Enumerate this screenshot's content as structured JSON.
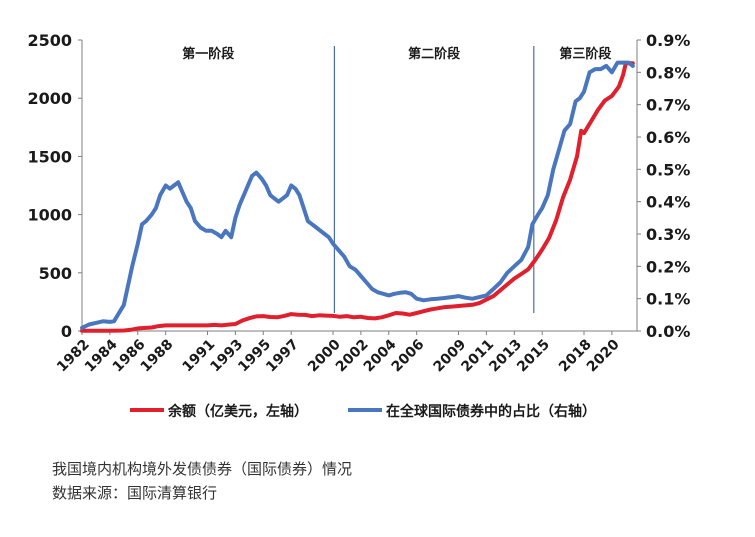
{
  "chart_data": {
    "type": "line",
    "title": "",
    "xlabel": "",
    "ylabel_left": "",
    "ylabel_right": "",
    "y_left_range": [
      0,
      2500
    ],
    "y_right_range": [
      0,
      0.9
    ],
    "x_range": [
      1982,
      2021.8
    ],
    "y_left_ticks": [
      "0",
      "500",
      "1000",
      "1500",
      "2000",
      "2500"
    ],
    "y_right_ticks": [
      "0.0%",
      "0.1%",
      "0.2%",
      "0.3%",
      "0.4%",
      "0.5%",
      "0.6%",
      "0.7%",
      "0.8%",
      "0.9%"
    ],
    "x_ticks": [
      "1982",
      "1984",
      "1986",
      "1988",
      "1991",
      "1993",
      "1995",
      "1997",
      "2000",
      "2002",
      "2004",
      "2006",
      "2009",
      "2011",
      "2013",
      "2015",
      "2018",
      "2020"
    ],
    "legend_position": "bottom",
    "grid": false,
    "phases": [
      {
        "label": "第一阶段",
        "x_start": 1982,
        "x_end": 2000.1
      },
      {
        "label": "第二阶段",
        "x_start": 2000.1,
        "x_end": 2014.4
      },
      {
        "label": "第三阶段",
        "x_start": 2014.4,
        "x_end": 2021.8
      }
    ],
    "series": [
      {
        "name": "余额（亿美元，左轴）",
        "axis": "left",
        "color": "#e0202c",
        "points": [
          [
            1982.0,
            2
          ],
          [
            1984.0,
            2
          ],
          [
            1985.0,
            4
          ],
          [
            1985.5,
            10
          ],
          [
            1986.0,
            22
          ],
          [
            1987.0,
            30
          ],
          [
            1987.5,
            42
          ],
          [
            1988.0,
            48
          ],
          [
            1989.0,
            48
          ],
          [
            1990.0,
            48
          ],
          [
            1991.0,
            48
          ],
          [
            1991.5,
            52
          ],
          [
            1992.0,
            48
          ],
          [
            1992.5,
            55
          ],
          [
            1993.0,
            60
          ],
          [
            1993.5,
            90
          ],
          [
            1994.0,
            110
          ],
          [
            1994.5,
            125
          ],
          [
            1995.0,
            128
          ],
          [
            1995.5,
            120
          ],
          [
            1996.0,
            118
          ],
          [
            1996.5,
            130
          ],
          [
            1997.0,
            145
          ],
          [
            1997.5,
            140
          ],
          [
            1998.0,
            138
          ],
          [
            1998.5,
            128
          ],
          [
            1999.0,
            135
          ],
          [
            1999.5,
            132
          ],
          [
            2000.0,
            130
          ],
          [
            2000.5,
            122
          ],
          [
            2001.0,
            128
          ],
          [
            2001.5,
            118
          ],
          [
            2002.0,
            122
          ],
          [
            2002.5,
            112
          ],
          [
            2003.0,
            108
          ],
          [
            2003.5,
            118
          ],
          [
            2004.0,
            135
          ],
          [
            2004.5,
            155
          ],
          [
            2005.0,
            150
          ],
          [
            2005.5,
            140
          ],
          [
            2006.0,
            155
          ],
          [
            2006.5,
            170
          ],
          [
            2007.0,
            185
          ],
          [
            2007.5,
            195
          ],
          [
            2008.0,
            205
          ],
          [
            2008.5,
            210
          ],
          [
            2009.0,
            215
          ],
          [
            2009.5,
            220
          ],
          [
            2010.0,
            225
          ],
          [
            2010.5,
            240
          ],
          [
            2011.0,
            270
          ],
          [
            2011.5,
            300
          ],
          [
            2012.0,
            350
          ],
          [
            2012.5,
            400
          ],
          [
            2013.0,
            450
          ],
          [
            2013.5,
            490
          ],
          [
            2014.0,
            530
          ],
          [
            2014.5,
            610
          ],
          [
            2015.0,
            700
          ],
          [
            2015.5,
            800
          ],
          [
            2016.0,
            950
          ],
          [
            2016.5,
            1150
          ],
          [
            2017.0,
            1300
          ],
          [
            2017.5,
            1500
          ],
          [
            2017.8,
            1720
          ],
          [
            2018.0,
            1700
          ],
          [
            2018.5,
            1800
          ],
          [
            2019.0,
            1900
          ],
          [
            2019.5,
            1980
          ],
          [
            2020.0,
            2020
          ],
          [
            2020.5,
            2100
          ],
          [
            2020.8,
            2200
          ],
          [
            2021.0,
            2300
          ],
          [
            2021.5,
            2300
          ]
        ]
      },
      {
        "name": "在全球国际债券中的占比（右轴）",
        "axis": "right",
        "color": "#4a76c0",
        "points": [
          [
            1982.0,
            0.01
          ],
          [
            1982.5,
            0.02
          ],
          [
            1983.0,
            0.025
          ],
          [
            1983.5,
            0.03
          ],
          [
            1984.0,
            0.028
          ],
          [
            1984.3,
            0.03
          ],
          [
            1984.5,
            0.045
          ],
          [
            1985.0,
            0.08
          ],
          [
            1985.3,
            0.14
          ],
          [
            1985.6,
            0.2
          ],
          [
            1986.0,
            0.27
          ],
          [
            1986.3,
            0.33
          ],
          [
            1986.6,
            0.34
          ],
          [
            1987.0,
            0.36
          ],
          [
            1987.3,
            0.38
          ],
          [
            1987.6,
            0.42
          ],
          [
            1988.0,
            0.45
          ],
          [
            1988.3,
            0.44
          ],
          [
            1988.6,
            0.45
          ],
          [
            1988.9,
            0.46
          ],
          [
            1989.2,
            0.43
          ],
          [
            1989.5,
            0.4
          ],
          [
            1989.8,
            0.38
          ],
          [
            1990.1,
            0.34
          ],
          [
            1990.5,
            0.32
          ],
          [
            1990.9,
            0.31
          ],
          [
            1991.3,
            0.31
          ],
          [
            1991.7,
            0.3
          ],
          [
            1992.0,
            0.29
          ],
          [
            1992.3,
            0.31
          ],
          [
            1992.7,
            0.29
          ],
          [
            1993.0,
            0.35
          ],
          [
            1993.3,
            0.39
          ],
          [
            1993.6,
            0.42
          ],
          [
            1993.9,
            0.45
          ],
          [
            1994.2,
            0.48
          ],
          [
            1994.5,
            0.49
          ],
          [
            1994.9,
            0.47
          ],
          [
            1995.2,
            0.45
          ],
          [
            1995.5,
            0.42
          ],
          [
            1995.8,
            0.41
          ],
          [
            1996.1,
            0.4
          ],
          [
            1996.4,
            0.41
          ],
          [
            1996.7,
            0.42
          ],
          [
            1997.0,
            0.45
          ],
          [
            1997.3,
            0.44
          ],
          [
            1997.6,
            0.42
          ],
          [
            1997.9,
            0.38
          ],
          [
            1998.2,
            0.34
          ],
          [
            1998.5,
            0.33
          ],
          [
            1998.8,
            0.32
          ],
          [
            1999.1,
            0.31
          ],
          [
            1999.4,
            0.3
          ],
          [
            1999.7,
            0.29
          ],
          [
            2000.0,
            0.27
          ],
          [
            2000.4,
            0.25
          ],
          [
            2000.8,
            0.23
          ],
          [
            2001.2,
            0.2
          ],
          [
            2001.6,
            0.19
          ],
          [
            2002.0,
            0.17
          ],
          [
            2002.4,
            0.15
          ],
          [
            2002.8,
            0.13
          ],
          [
            2003.2,
            0.12
          ],
          [
            2003.6,
            0.115
          ],
          [
            2004.0,
            0.11
          ],
          [
            2004.4,
            0.115
          ],
          [
            2004.8,
            0.118
          ],
          [
            2005.2,
            0.12
          ],
          [
            2005.6,
            0.115
          ],
          [
            2006.0,
            0.1
          ],
          [
            2006.5,
            0.095
          ],
          [
            2007.0,
            0.098
          ],
          [
            2007.5,
            0.1
          ],
          [
            2008.0,
            0.102
          ],
          [
            2008.5,
            0.105
          ],
          [
            2009.0,
            0.108
          ],
          [
            2009.5,
            0.103
          ],
          [
            2010.0,
            0.1
          ],
          [
            2010.5,
            0.105
          ],
          [
            2011.0,
            0.11
          ],
          [
            2011.5,
            0.13
          ],
          [
            2012.0,
            0.15
          ],
          [
            2012.5,
            0.18
          ],
          [
            2013.0,
            0.2
          ],
          [
            2013.5,
            0.22
          ],
          [
            2014.0,
            0.26
          ],
          [
            2014.3,
            0.33
          ],
          [
            2014.7,
            0.36
          ],
          [
            2015.0,
            0.38
          ],
          [
            2015.4,
            0.42
          ],
          [
            2015.8,
            0.5
          ],
          [
            2016.2,
            0.56
          ],
          [
            2016.6,
            0.62
          ],
          [
            2017.0,
            0.64
          ],
          [
            2017.4,
            0.71
          ],
          [
            2017.7,
            0.72
          ],
          [
            2018.0,
            0.74
          ],
          [
            2018.4,
            0.8
          ],
          [
            2018.8,
            0.81
          ],
          [
            2019.2,
            0.81
          ],
          [
            2019.6,
            0.82
          ],
          [
            2020.0,
            0.8
          ],
          [
            2020.4,
            0.83
          ],
          [
            2020.8,
            0.83
          ],
          [
            2021.2,
            0.83
          ],
          [
            2021.5,
            0.82
          ]
        ]
      }
    ]
  },
  "caption": {
    "line1": "我国境内机构境外发债债券（国际债券）情况",
    "line2": "数据来源：国际清算银行"
  }
}
